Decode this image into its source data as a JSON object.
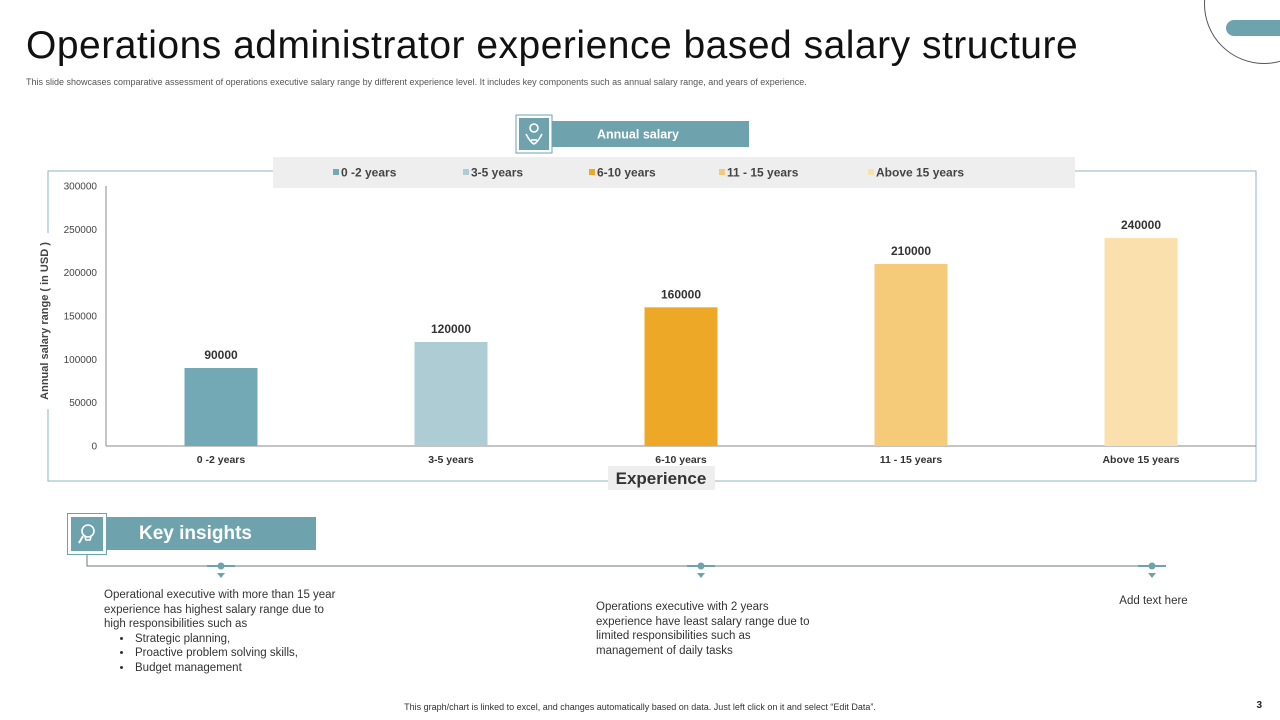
{
  "title": "Operations administrator experience based salary structure",
  "subtitle": "This slide showcases comparative assessment of operations executive salary range by different experience level. It includes key components such as annual salary range, and years of experience.",
  "chart_data": {
    "type": "bar",
    "title": "Annual salary",
    "xlabel": "Experience",
    "ylabel": "Annual salary range ( in USD )",
    "categories": [
      "0 -2 years",
      "3-5 years",
      "6-10 years",
      "11 - 15 years",
      "Above 15 years"
    ],
    "values": [
      90000,
      120000,
      160000,
      210000,
      240000
    ],
    "data_labels": [
      "90000",
      "120000",
      "160000",
      "210000",
      "240000"
    ],
    "legend": [
      "0 -2 years",
      "3-5 years",
      "6-10 years",
      "11 - 15 years",
      "Above 15 years"
    ],
    "colors": [
      "#73a9b4",
      "#aeccd3",
      "#eea827",
      "#f5cb7a",
      "#f9e0ac"
    ],
    "ylim": [
      0,
      300000
    ],
    "yticks": [
      "0",
      "50000",
      "100000",
      "150000",
      "200000",
      "250000",
      "300000"
    ],
    "legend_position": "top",
    "grid": false
  },
  "insights": {
    "header": "Key insights",
    "items": [
      {
        "text": "Operational executive with more than 15 year experience has highest salary range due to high responsibilities such as",
        "bullets": [
          "Strategic planning,",
          "Proactive problem solving skills,",
          "Budget management"
        ]
      },
      {
        "text": "Operations executive with 2 years experience have least salary range due to limited responsibilities such as management of daily tasks"
      },
      {
        "text": "Add text here"
      }
    ]
  },
  "footer": "This graph/chart is linked to excel, and changes automatically based on data. Just left click on it and select “Edit Data”.",
  "page_number": "3",
  "colors": {
    "accent": "#6ea3ae",
    "chart_border": "#8fb6bf",
    "legend_bg": "#eeeeee"
  },
  "icons": {
    "chart_badge": "hand-money-icon",
    "insights_badge": "lightbulb-gear-icon"
  }
}
